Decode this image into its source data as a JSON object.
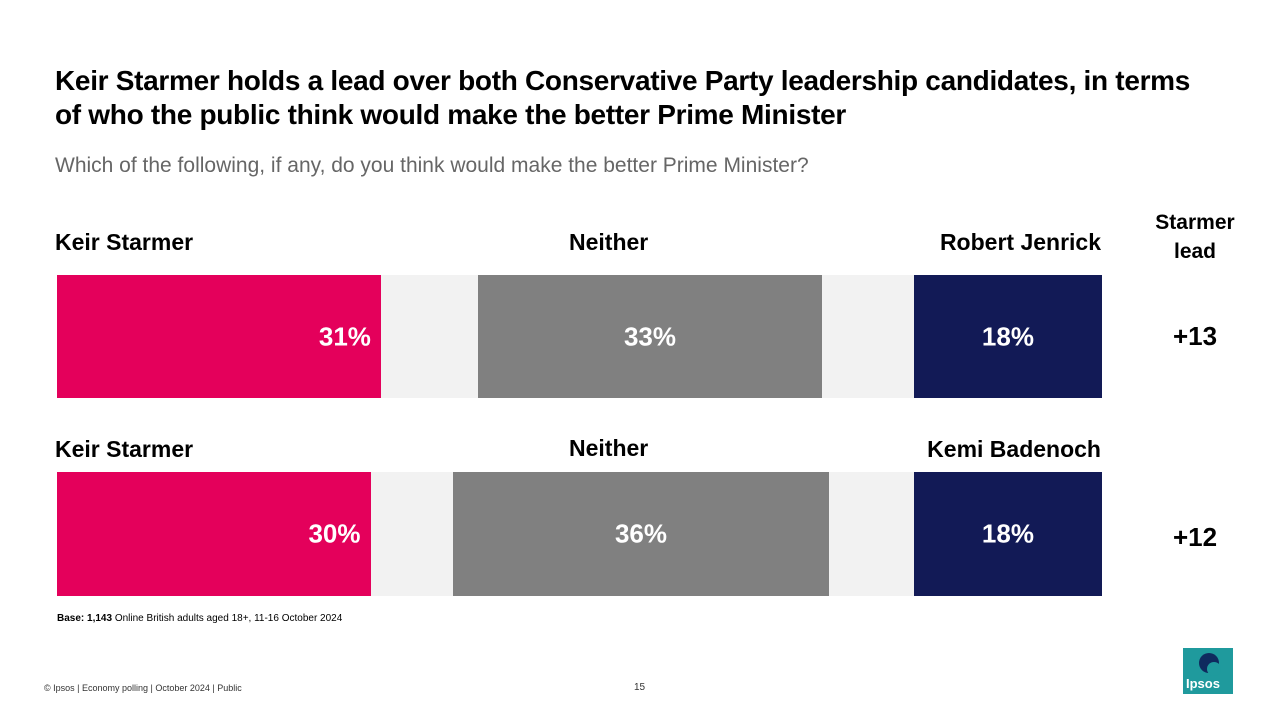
{
  "title": "Keir Starmer holds a lead over both Conservative Party leadership candidates, in terms of who the public think would make the better Prime Minister",
  "subtitle": "Which of the following, if any, do you think would make the better Prime Minister?",
  "lead_header": {
    "line1": "Starmer",
    "line2": "lead"
  },
  "colors": {
    "starmer": "#e4005b",
    "neither": "#808080",
    "opponent": "#121a56",
    "track": "#f2f2f2"
  },
  "chart_data": {
    "type": "bar",
    "orientation": "horizontal",
    "unit": "%",
    "rows": [
      {
        "left_label": "Keir Starmer",
        "middle_label": "Neither",
        "right_label": "Robert Jenrick",
        "starmer": 31,
        "starmer_label": "31%",
        "neither": 33,
        "neither_label": "33%",
        "opponent": 18,
        "opponent_label": "18%",
        "lead": "+13"
      },
      {
        "left_label": "Keir Starmer",
        "middle_label": "Neither",
        "right_label": "Kemi Badenoch",
        "starmer": 30,
        "starmer_label": "30%",
        "neither": 36,
        "neither_label": "36%",
        "opponent": 18,
        "opponent_label": "18%",
        "lead": "+12"
      }
    ]
  },
  "base": {
    "label": "Base:",
    "count": "1,143",
    "text": " Online British adults aged 18+, 11-16 October 2024"
  },
  "footer": "© Ipsos | Economy polling | October 2024 | Public",
  "page_number": "15",
  "logo_text": "Ipsos"
}
